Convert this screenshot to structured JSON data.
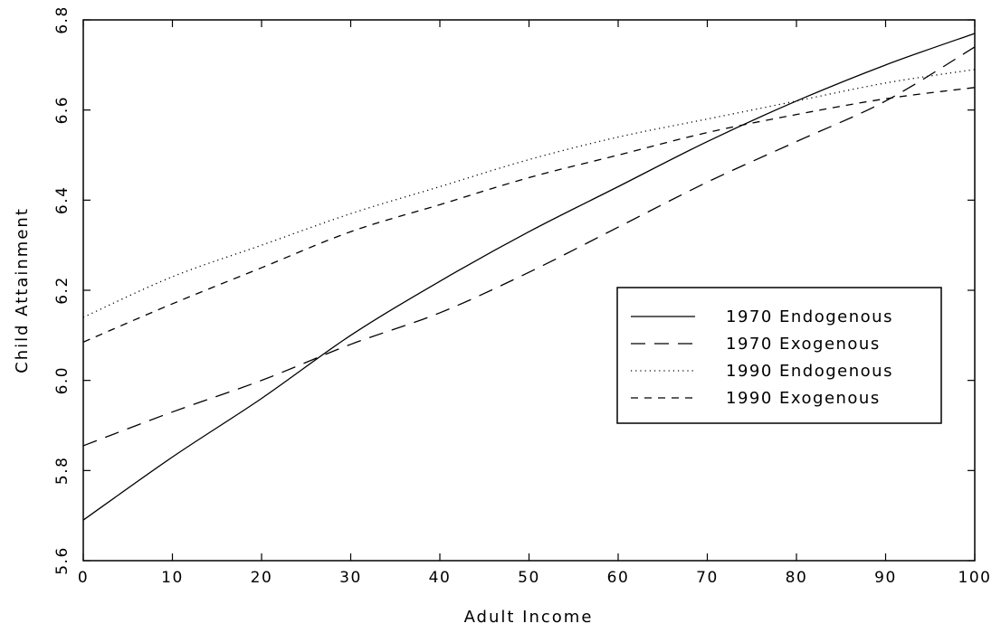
{
  "chart_data": {
    "type": "line",
    "title": "",
    "xlabel": "Adult Income",
    "ylabel": "Child Attainment",
    "xlim": [
      0,
      100
    ],
    "ylim": [
      5.6,
      6.8
    ],
    "xticks": [
      0,
      10,
      20,
      30,
      40,
      50,
      60,
      70,
      80,
      90,
      100
    ],
    "yticks": [
      5.6,
      5.8,
      6.0,
      6.2,
      6.4,
      6.6,
      6.8
    ],
    "xtick_labels": [
      "0",
      "10",
      "20",
      "30",
      "40",
      "50",
      "60",
      "70",
      "80",
      "90",
      "100"
    ],
    "ytick_labels": [
      "5.6",
      "5.8",
      "6.0",
      "6.2",
      "6.4",
      "6.6",
      "6.8"
    ],
    "grid": false,
    "legend_position": "right",
    "x": [
      0,
      10,
      20,
      30,
      40,
      50,
      60,
      70,
      80,
      90,
      100
    ],
    "series": [
      {
        "name": "1970 Endogenous",
        "style": "solid",
        "values": [
          5.69,
          5.83,
          5.96,
          6.1,
          6.22,
          6.33,
          6.43,
          6.53,
          6.62,
          6.7,
          6.77
        ]
      },
      {
        "name": "1970 Exogenous",
        "style": "long-dash",
        "values": [
          5.855,
          5.93,
          6.0,
          6.08,
          6.15,
          6.24,
          6.34,
          6.44,
          6.53,
          6.62,
          6.74
        ]
      },
      {
        "name": "1990 Endogenous",
        "style": "dotted",
        "values": [
          6.14,
          6.23,
          6.3,
          6.37,
          6.43,
          6.49,
          6.54,
          6.58,
          6.62,
          6.66,
          6.69
        ]
      },
      {
        "name": "1990 Exogenous",
        "style": "short-dash",
        "values": [
          6.085,
          6.17,
          6.25,
          6.33,
          6.39,
          6.45,
          6.5,
          6.55,
          6.59,
          6.625,
          6.65
        ]
      }
    ],
    "colors": {
      "line": "#000000",
      "background": "#ffffff"
    }
  }
}
